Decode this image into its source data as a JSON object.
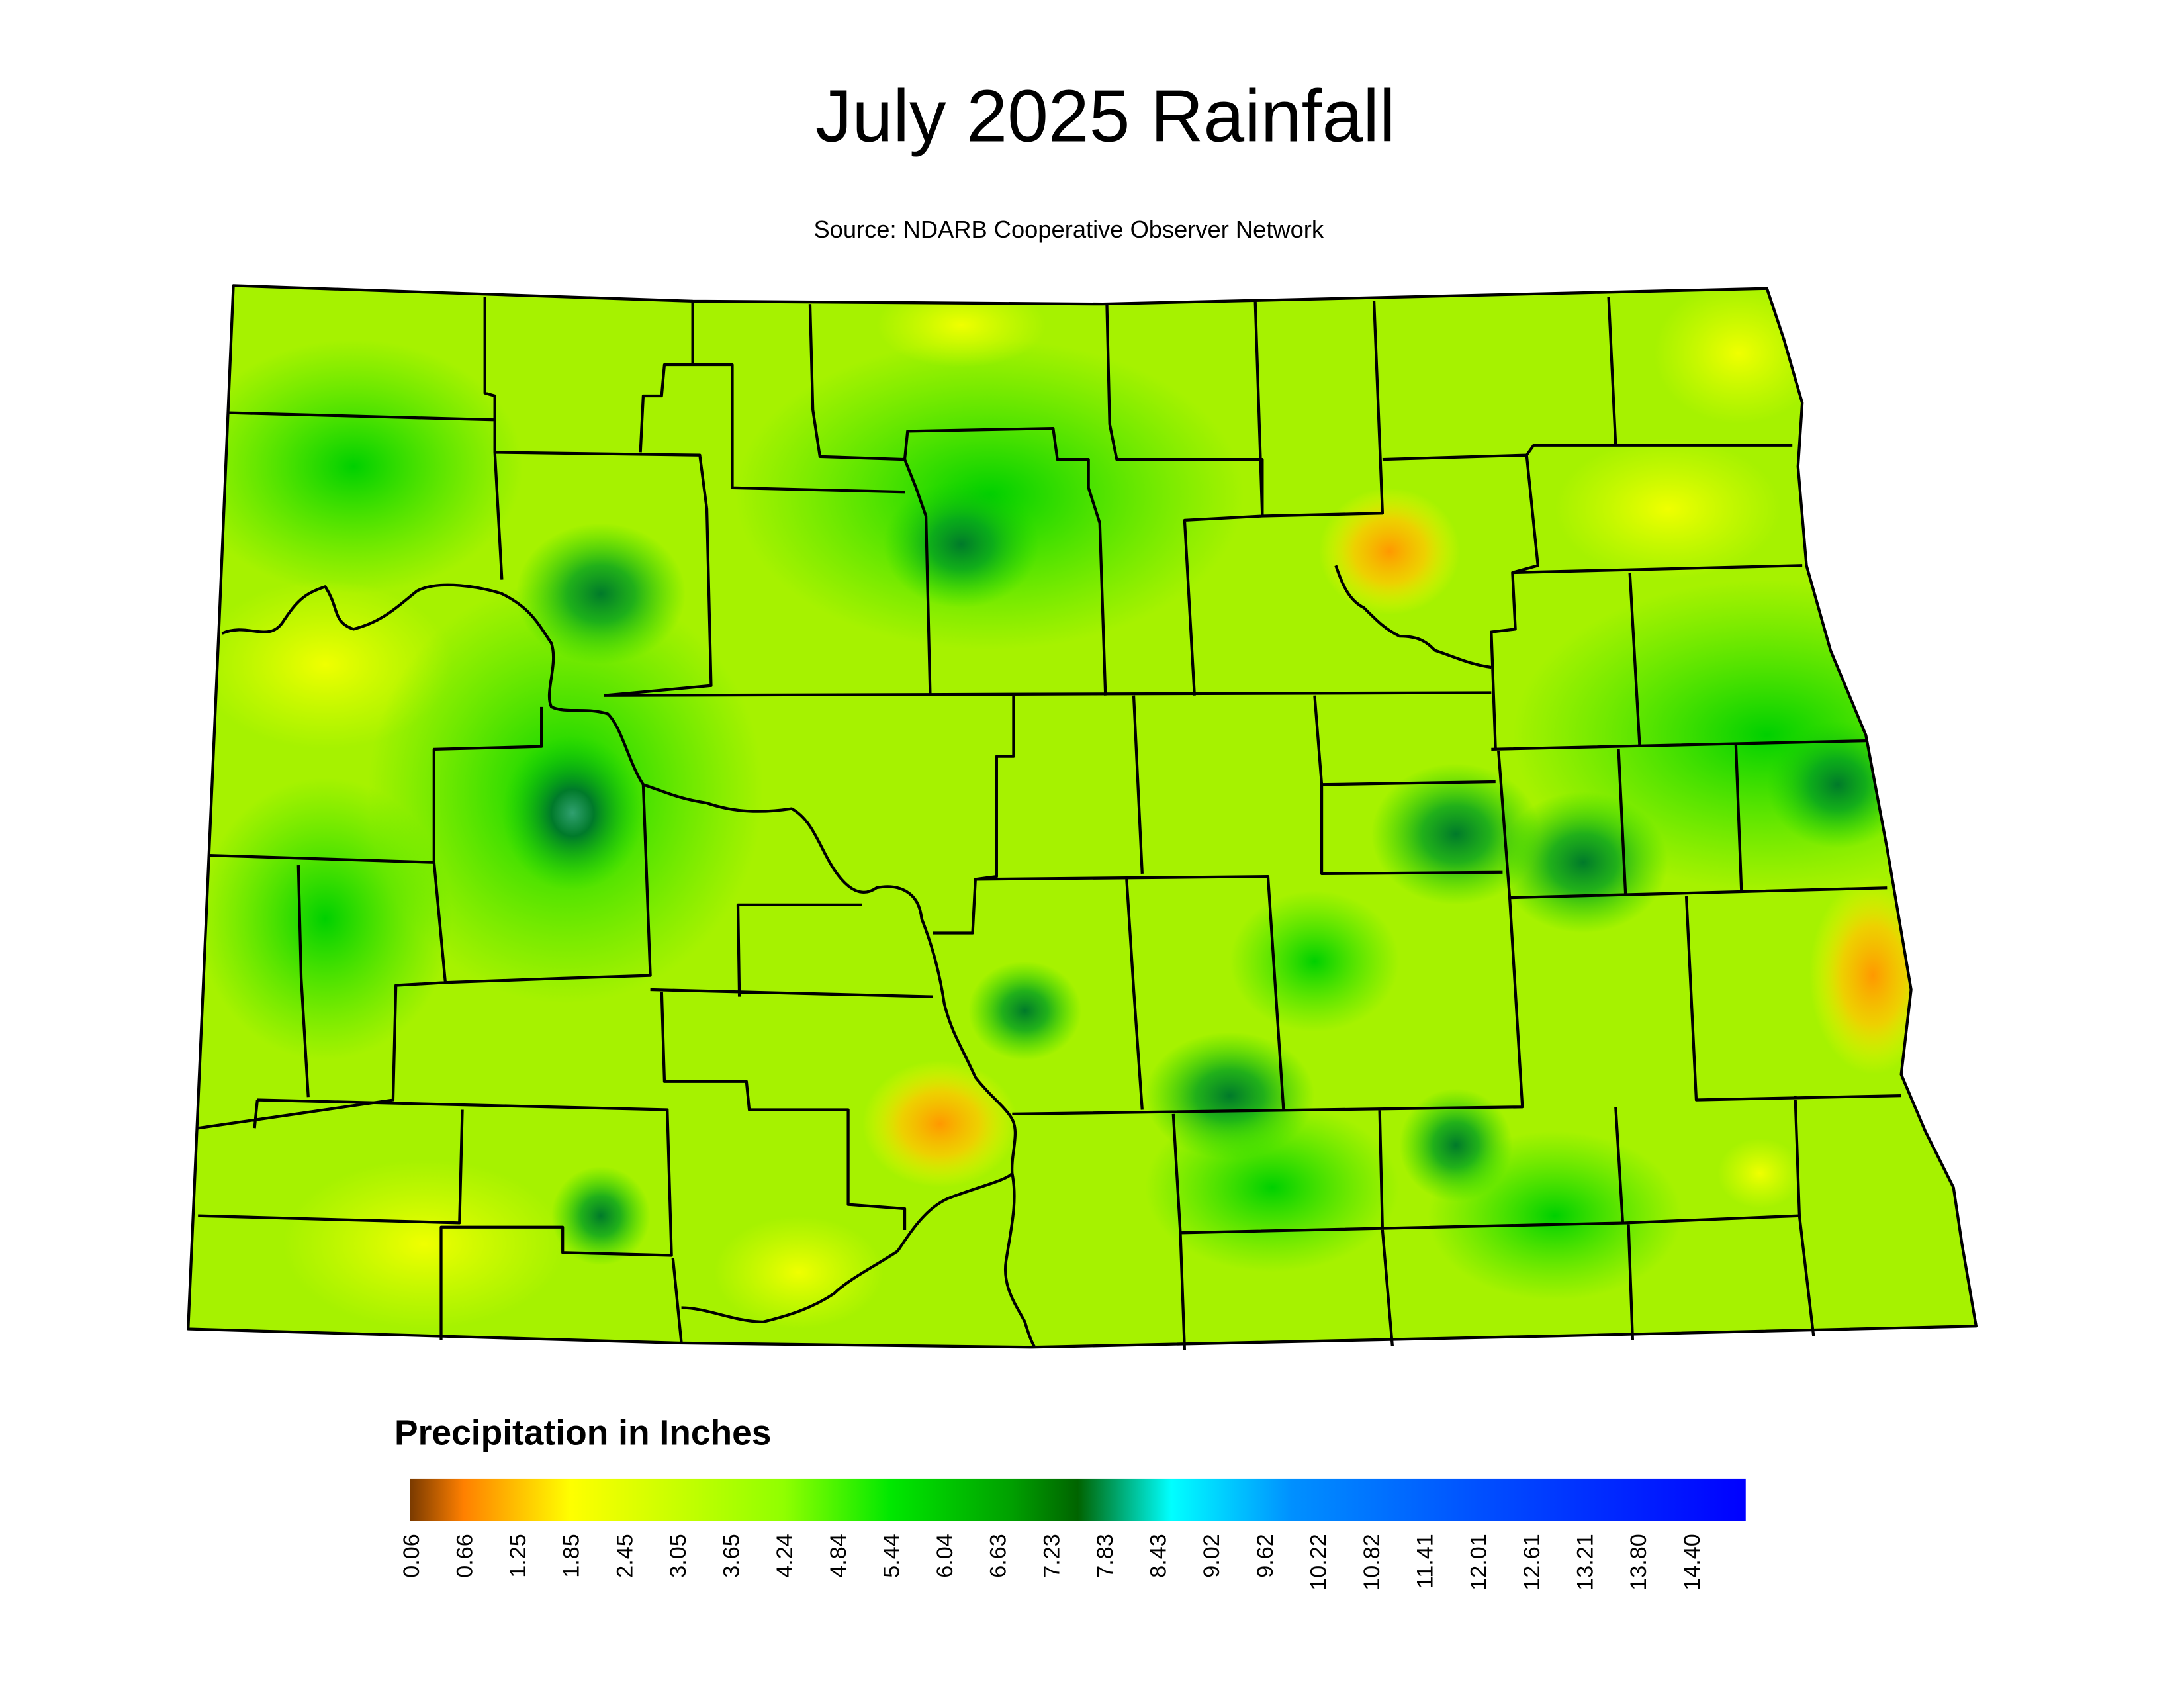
{
  "title": "July 2025 Rainfall",
  "source": "Source: NDARB Cooperative Observer Network",
  "legend": {
    "title": "Precipitation in Inches",
    "labels": [
      "0.06",
      "0.66",
      "1.25",
      "1.85",
      "2.45",
      "3.05",
      "3.65",
      "4.24",
      "4.84",
      "5.44",
      "6.04",
      "6.63",
      "7.23",
      "7.83",
      "8.43",
      "9.02",
      "9.62",
      "10.22",
      "10.82",
      "11.41",
      "12.01",
      "12.61",
      "13.21",
      "13.80",
      "14.40"
    ]
  }
}
